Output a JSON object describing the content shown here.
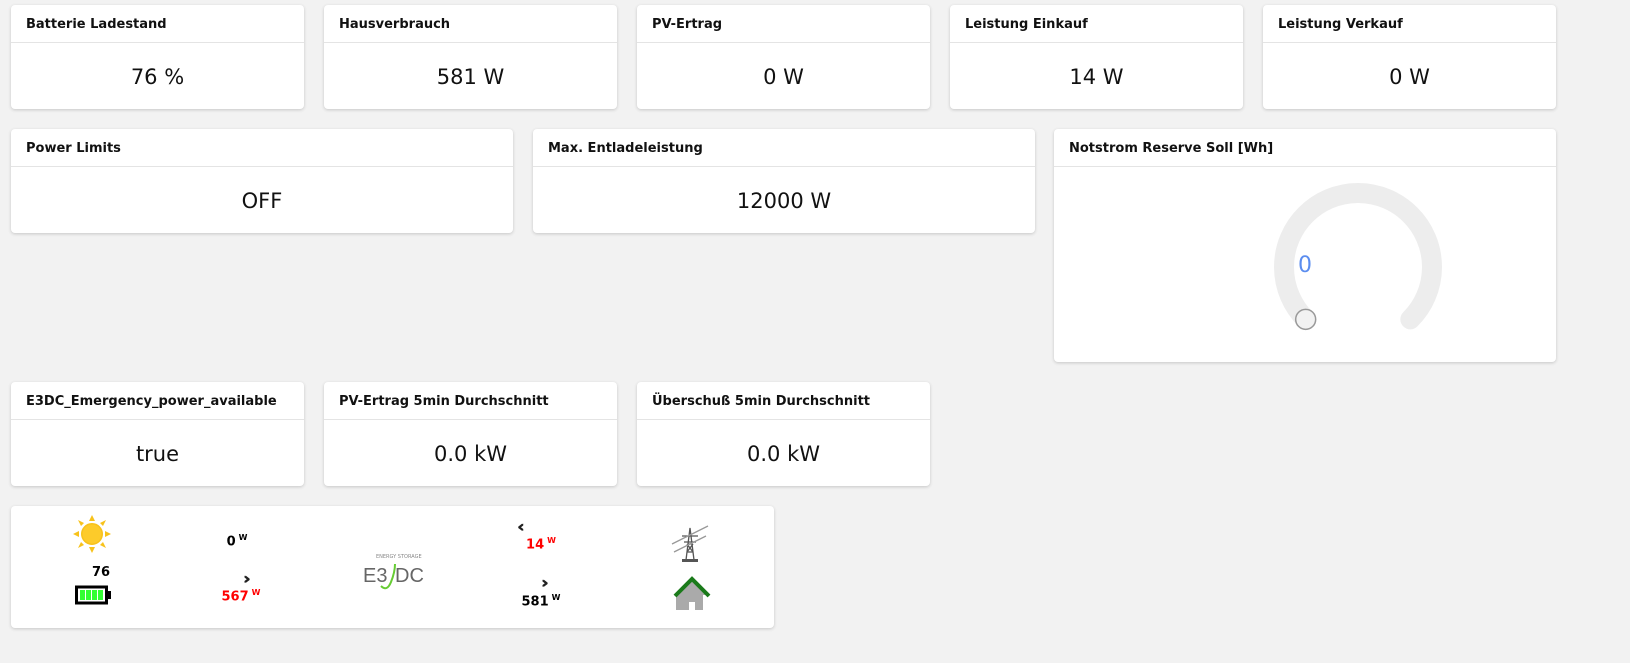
{
  "row1": [
    {
      "title": "Batterie Ladestand",
      "value": "76 %"
    },
    {
      "title": "Hausverbrauch",
      "value": "581 W"
    },
    {
      "title": "PV-Ertrag",
      "value": "0 W"
    },
    {
      "title": "Leistung Einkauf",
      "value": "14 W"
    },
    {
      "title": "Leistung Verkauf",
      "value": "0 W"
    }
  ],
  "row2": [
    {
      "title": "Power Limits",
      "value": "OFF"
    },
    {
      "title": "Max. Entladeleistung",
      "value": "12000 W"
    }
  ],
  "gauge": {
    "title": "Notstrom Reserve Soll [Wh]",
    "value": "0",
    "fraction": 0,
    "value_color": "#5b8def"
  },
  "row3": [
    {
      "title": "E3DC_Emergency_power_available",
      "value": "true"
    },
    {
      "title": "PV-Ertrag 5min Durchschnitt",
      "value": "0.0 kW"
    },
    {
      "title": "Überschuß 5min Durchschnitt",
      "value": "0.0 kW"
    }
  ],
  "flow": {
    "pv": {
      "value": "0",
      "unit": "W"
    },
    "battery_soc": "76",
    "battery": {
      "value": "567",
      "unit": "W"
    },
    "grid": {
      "value": "14",
      "unit": "W"
    },
    "house": {
      "value": "581",
      "unit": "W"
    },
    "logo_text": "E3DC",
    "logo_sub": "ENERGY STORAGE"
  }
}
